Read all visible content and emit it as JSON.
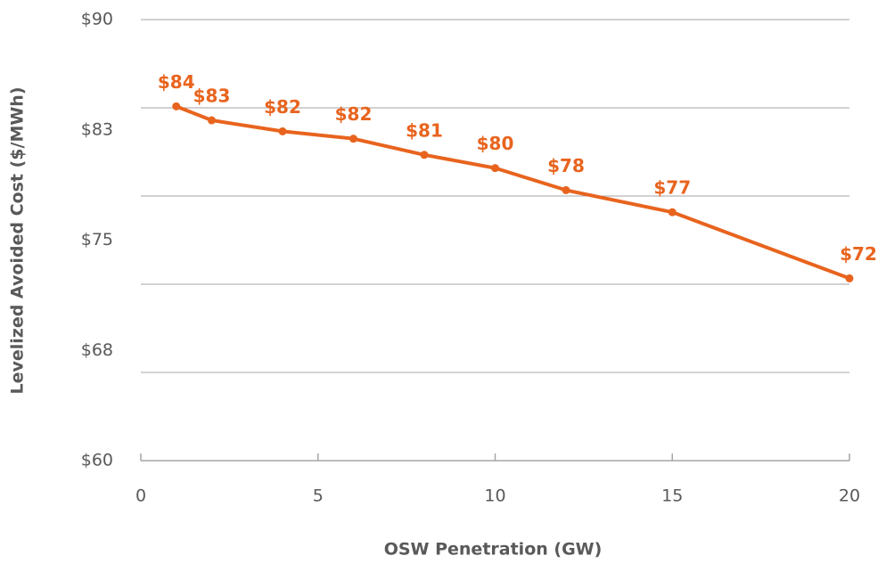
{
  "chart_data": {
    "type": "line",
    "xlabel": "OSW Penetration (GW)",
    "ylabel": "Levelized Avoided Cost ($/MWh)",
    "x": [
      1,
      2,
      4,
      6,
      8,
      10,
      12,
      15,
      20
    ],
    "series": [
      {
        "color": "#e8641e",
        "values": [
          84.1,
          83.15,
          82.4,
          81.9,
          80.8,
          79.9,
          78.4,
          76.9,
          72.4
        ],
        "value_labels": [
          "$84",
          "$83",
          "$82",
          "$82",
          "$81",
          "$80",
          "$78",
          "$77",
          "$72"
        ]
      }
    ],
    "xlim": [
      0,
      20
    ],
    "xticks": [
      0,
      5,
      10,
      15,
      20
    ],
    "ylim": [
      60,
      90
    ],
    "yticks": [
      {
        "value": 60,
        "label": "$60"
      },
      {
        "value": 67.5,
        "label": "$68"
      },
      {
        "value": 75,
        "label": "$75"
      },
      {
        "value": 82.5,
        "label": "$83"
      },
      {
        "value": 90,
        "label": "$90"
      }
    ],
    "grid_lines": [
      66,
      72,
      78,
      84,
      90
    ],
    "grid": true
  }
}
